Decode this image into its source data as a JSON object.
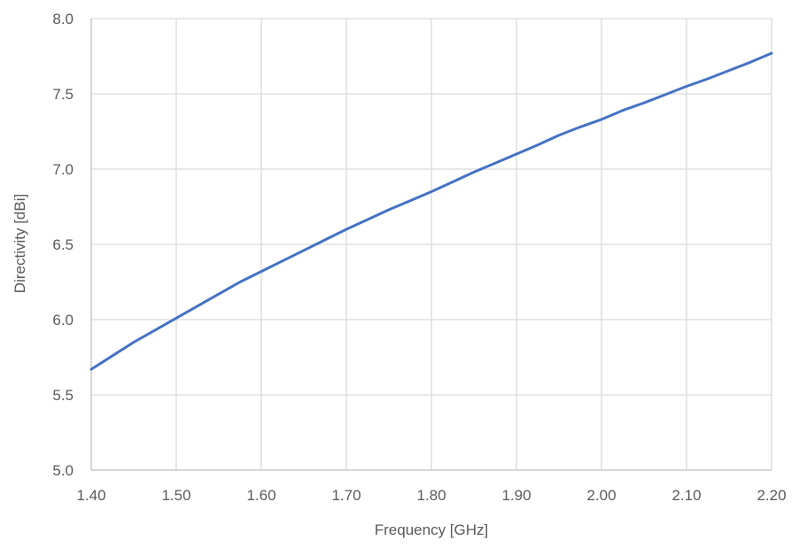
{
  "chart_data": {
    "type": "line",
    "title": "",
    "xlabel": "Frequency [GHz]",
    "ylabel": "Directivity [dBi]",
    "xlim": [
      1.4,
      2.2
    ],
    "ylim": [
      5.0,
      8.0
    ],
    "x_ticks": [
      "1.40",
      "1.50",
      "1.60",
      "1.70",
      "1.80",
      "1.90",
      "2.00",
      "2.10",
      "2.20"
    ],
    "y_ticks": [
      "5.0",
      "5.5",
      "6.0",
      "6.5",
      "7.0",
      "7.5",
      "8.0"
    ],
    "grid": true,
    "legend": "none",
    "series": [
      {
        "color": "#4472c4",
        "x": [
          1.4,
          1.425,
          1.45,
          1.475,
          1.5,
          1.525,
          1.55,
          1.575,
          1.6,
          1.625,
          1.65,
          1.675,
          1.7,
          1.725,
          1.75,
          1.775,
          1.8,
          1.825,
          1.85,
          1.875,
          1.9,
          1.925,
          1.95,
          1.975,
          2.0,
          2.025,
          2.05,
          2.075,
          2.1,
          2.125,
          2.15,
          2.175,
          2.2
        ],
        "y": [
          5.67,
          5.76,
          5.85,
          5.93,
          6.01,
          6.09,
          6.17,
          6.25,
          6.32,
          6.39,
          6.46,
          6.53,
          6.6,
          6.665,
          6.73,
          6.79,
          6.85,
          6.915,
          6.98,
          7.04,
          7.1,
          7.16,
          7.225,
          7.28,
          7.33,
          7.39,
          7.44,
          7.495,
          7.55,
          7.6,
          7.655,
          7.71,
          7.77
        ]
      }
    ]
  }
}
